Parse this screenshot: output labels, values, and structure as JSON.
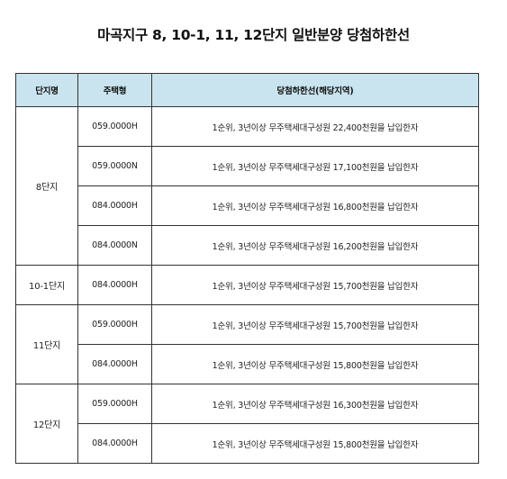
{
  "title": "마곡지구 8, 10-1, 11, 12단지 일반분양 당첨하한선",
  "table": {
    "headers": [
      "단지명",
      "주택형",
      "당첨하한선(해당지역)"
    ],
    "groups": [
      {
        "name": "8단지",
        "rows": [
          {
            "type": "059.0000H",
            "cutoff": "1순위, 3년이상 무주택세대구성원 22,400천원을 납입한자"
          },
          {
            "type": "059.0000N",
            "cutoff": "1순위, 3년이상 무주택세대구성원 17,100천원을 납입한자"
          },
          {
            "type": "084.0000H",
            "cutoff": "1순위, 3년이상 무주택세대구성원 16,800천원을 납입한자"
          },
          {
            "type": "084.0000N",
            "cutoff": "1순위, 3년이상 무주택세대구성원 16,200천원을 납입한자"
          }
        ]
      },
      {
        "name": "10-1단지",
        "rows": [
          {
            "type": "084.0000H",
            "cutoff": "1순위, 3년이상 무주택세대구성원 15,700천원을 납입한자"
          }
        ]
      },
      {
        "name": "11단지",
        "rows": [
          {
            "type": "059.0000H",
            "cutoff": "1순위, 3년이상 무주택세대구성원 15,700천원을 납입한자"
          },
          {
            "type": "084.0000H",
            "cutoff": "1순위, 3년이상 무주택세대구성원 15,800천원을 납입한자"
          }
        ]
      },
      {
        "name": "12단지",
        "rows": [
          {
            "type": "059.0000H",
            "cutoff": "1순위, 3년이상 무주택세대구성원 16,300천원을 납입한자"
          },
          {
            "type": "084.0000H",
            "cutoff": "1순위, 3년이상 무주택세대구성원 15,800천원을 납입한자"
          }
        ]
      }
    ]
  },
  "colors": {
    "header_bg": "#c9e4ee",
    "border": "#333333"
  }
}
